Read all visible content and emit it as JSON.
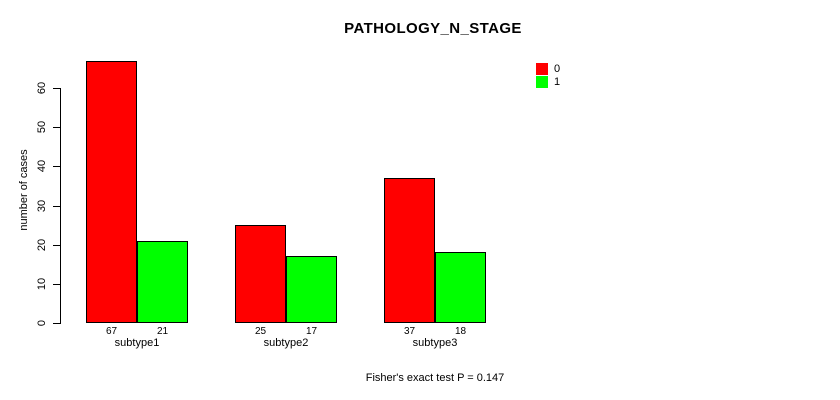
{
  "title": "PATHOLOGY_N_STAGE",
  "footnote": "Fisher's exact test P = 0.147",
  "chart_data": {
    "type": "bar",
    "title": "PATHOLOGY_N_STAGE",
    "categories": [
      "subtype1",
      "subtype2",
      "subtype3"
    ],
    "series": [
      {
        "name": "0",
        "color": "#ff0000",
        "values": [
          67,
          25,
          37
        ]
      },
      {
        "name": "1",
        "color": "#00ff00",
        "values": [
          21,
          17,
          18
        ]
      }
    ],
    "xlabel": "",
    "ylabel": "number of cases",
    "yticks": [
      0,
      10,
      20,
      30,
      40,
      50,
      60
    ],
    "ylim": [
      0,
      67
    ],
    "grid": false,
    "legend_position": "top-right",
    "show_bar_value_labels": true,
    "annotation": "Fisher's exact test P = 0.147"
  }
}
